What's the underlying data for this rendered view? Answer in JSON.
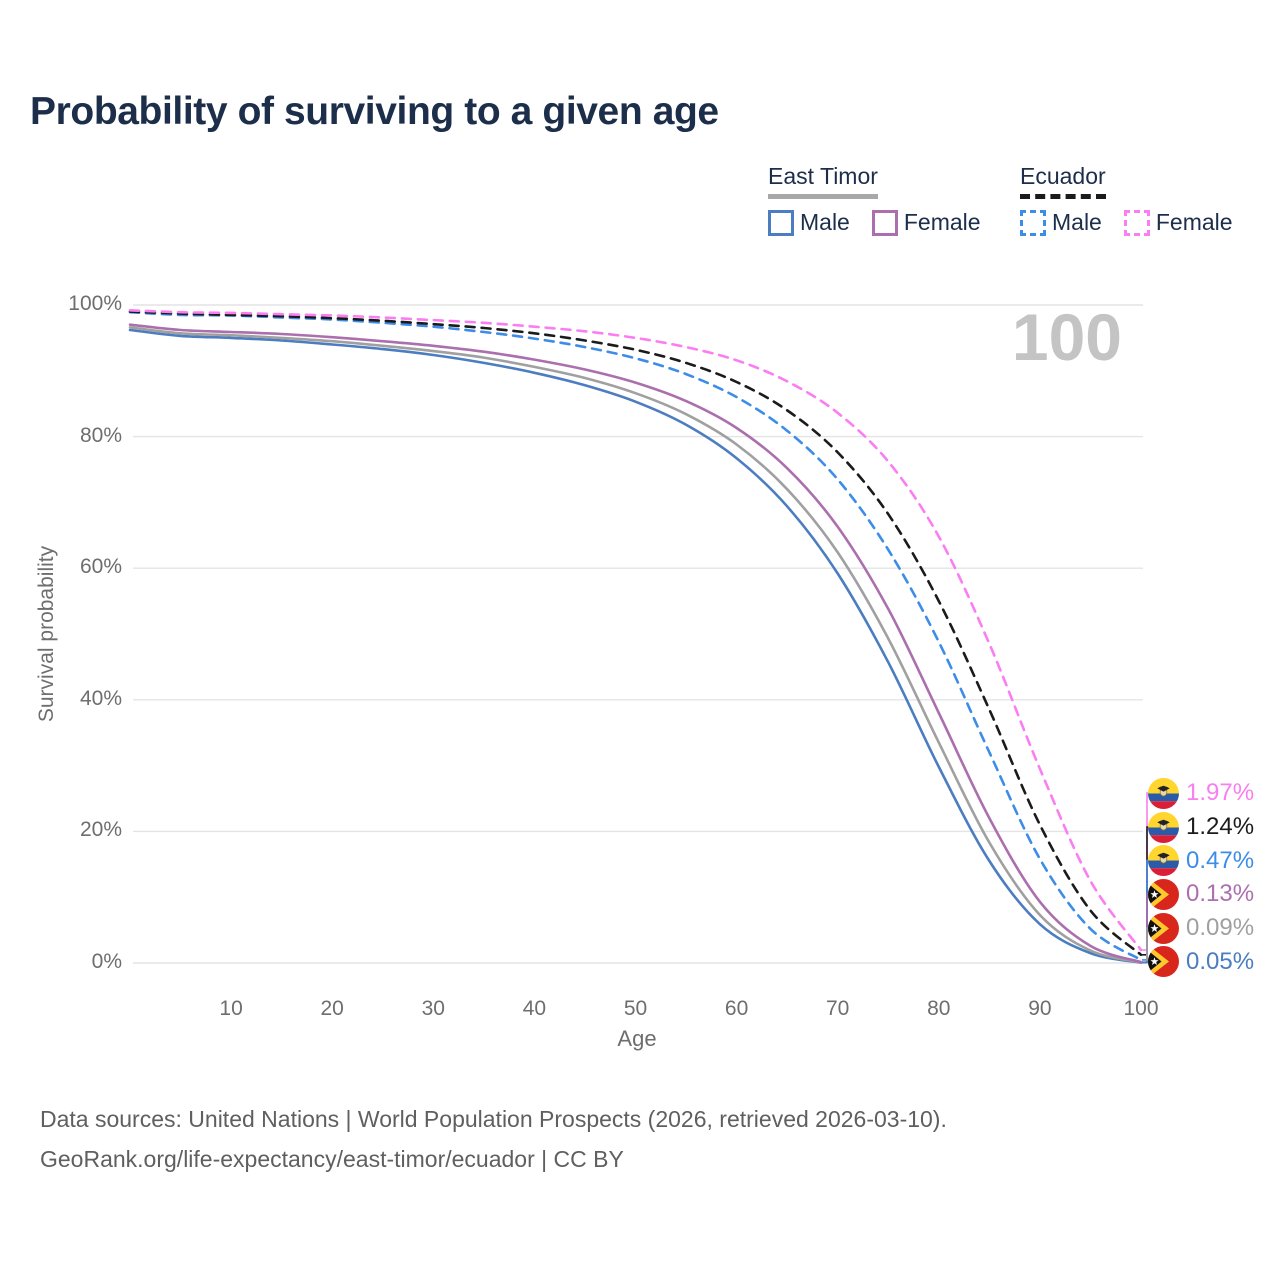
{
  "title": "Probability of surviving to a given age",
  "watermark": "100",
  "legend": {
    "groups": [
      {
        "name": "East Timor",
        "line_style": "solid",
        "underline_color": "#a8a8a8",
        "items": [
          {
            "label": "Male",
            "color": "#4b7dc0",
            "dashed": false
          },
          {
            "label": "Female",
            "color": "#ac6fae",
            "dashed": false
          }
        ]
      },
      {
        "name": "Ecuador",
        "line_style": "dashed",
        "underline_color": "#1b1b1b",
        "items": [
          {
            "label": "Male",
            "color": "#3d8de8",
            "dashed": true
          },
          {
            "label": "Female",
            "color": "#fa7ef2",
            "dashed": true
          }
        ]
      }
    ]
  },
  "axes": {
    "x_label": "Age",
    "y_label": "Survival probability",
    "y_ticks": [
      "0%",
      "20%",
      "40%",
      "60%",
      "80%",
      "100%"
    ],
    "x_ticks": [
      10,
      20,
      30,
      40,
      50,
      60,
      70,
      80,
      90,
      100
    ]
  },
  "chart_data": {
    "type": "line",
    "title": "Probability of surviving to a given age",
    "xlabel": "Age",
    "ylabel": "Survival probability",
    "xlim": [
      0,
      100
    ],
    "ylim": [
      0,
      100
    ],
    "grid": true,
    "legend_position": "top-right",
    "x": [
      0,
      5,
      10,
      15,
      20,
      25,
      30,
      35,
      40,
      45,
      50,
      55,
      60,
      65,
      70,
      75,
      80,
      85,
      90,
      95,
      100
    ],
    "series": [
      {
        "name": "Ecuador Female",
        "country": "Ecuador",
        "sex": "Female",
        "color": "#fa7ef2",
        "dashed": true,
        "flag": "ecuador",
        "end_label": "1.97%",
        "values": [
          99.2,
          98.9,
          98.8,
          98.6,
          98.4,
          98.1,
          97.7,
          97.3,
          96.7,
          96.0,
          95.0,
          93.6,
          91.6,
          88.4,
          83.6,
          76.2,
          64.8,
          48.5,
          29.5,
          12.5,
          1.97
        ]
      },
      {
        "name": "Ecuador Both sexes",
        "country": "Ecuador",
        "sex": "Both",
        "color": "#1b1b1b",
        "dashed": true,
        "flag": "ecuador",
        "end_label": "1.24%",
        "values": [
          99.0,
          98.7,
          98.5,
          98.3,
          98.0,
          97.6,
          97.1,
          96.5,
          95.7,
          94.6,
          93.2,
          91.2,
          88.3,
          84.0,
          77.6,
          68.2,
          55.0,
          38.5,
          21.0,
          8.0,
          1.24
        ]
      },
      {
        "name": "Ecuador Male",
        "country": "Ecuador",
        "sex": "Male",
        "color": "#3d8de8",
        "dashed": true,
        "flag": "ecuador",
        "end_label": "0.47%",
        "values": [
          98.9,
          98.5,
          98.4,
          98.1,
          97.8,
          97.3,
          96.7,
          95.9,
          94.9,
          93.6,
          91.9,
          89.5,
          86.0,
          80.9,
          73.5,
          62.8,
          48.8,
          32.0,
          15.8,
          5.2,
          0.47
        ]
      },
      {
        "name": "East Timor Female",
        "country": "East Timor",
        "sex": "Female",
        "color": "#ac6fae",
        "dashed": false,
        "flag": "east-timor",
        "end_label": "0.13%",
        "values": [
          97.0,
          96.2,
          95.9,
          95.6,
          95.1,
          94.5,
          93.8,
          92.9,
          91.7,
          90.2,
          88.2,
          85.4,
          81.3,
          75.2,
          66.3,
          53.8,
          38.0,
          22.0,
          9.3,
          2.6,
          0.13
        ]
      },
      {
        "name": "East Timor Both sexes",
        "country": "East Timor",
        "sex": "Both",
        "color": "#a0a0a0",
        "dashed": false,
        "flag": "east-timor",
        "end_label": "0.09%",
        "values": [
          96.6,
          95.7,
          95.4,
          95.0,
          94.5,
          93.8,
          93.0,
          92.0,
          90.6,
          88.9,
          86.6,
          83.4,
          78.8,
          72.0,
          62.4,
          49.3,
          33.5,
          18.3,
          7.3,
          1.9,
          0.09
        ]
      },
      {
        "name": "East Timor Male",
        "country": "East Timor",
        "sex": "Male",
        "color": "#4b7dc0",
        "dashed": false,
        "flag": "east-timor",
        "end_label": "0.05%",
        "values": [
          96.2,
          95.3,
          95.0,
          94.6,
          94.0,
          93.3,
          92.4,
          91.2,
          89.7,
          87.8,
          85.3,
          81.8,
          76.7,
          69.4,
          59.2,
          45.7,
          29.8,
          15.5,
          5.9,
          1.5,
          0.05
        ]
      }
    ]
  },
  "footer": {
    "line1": "Data sources: United Nations | World Population Prospects (2026, retrieved 2026-03-10).",
    "line2": "GeoRank.org/life-expectancy/east-timor/ecuador | CC BY"
  }
}
